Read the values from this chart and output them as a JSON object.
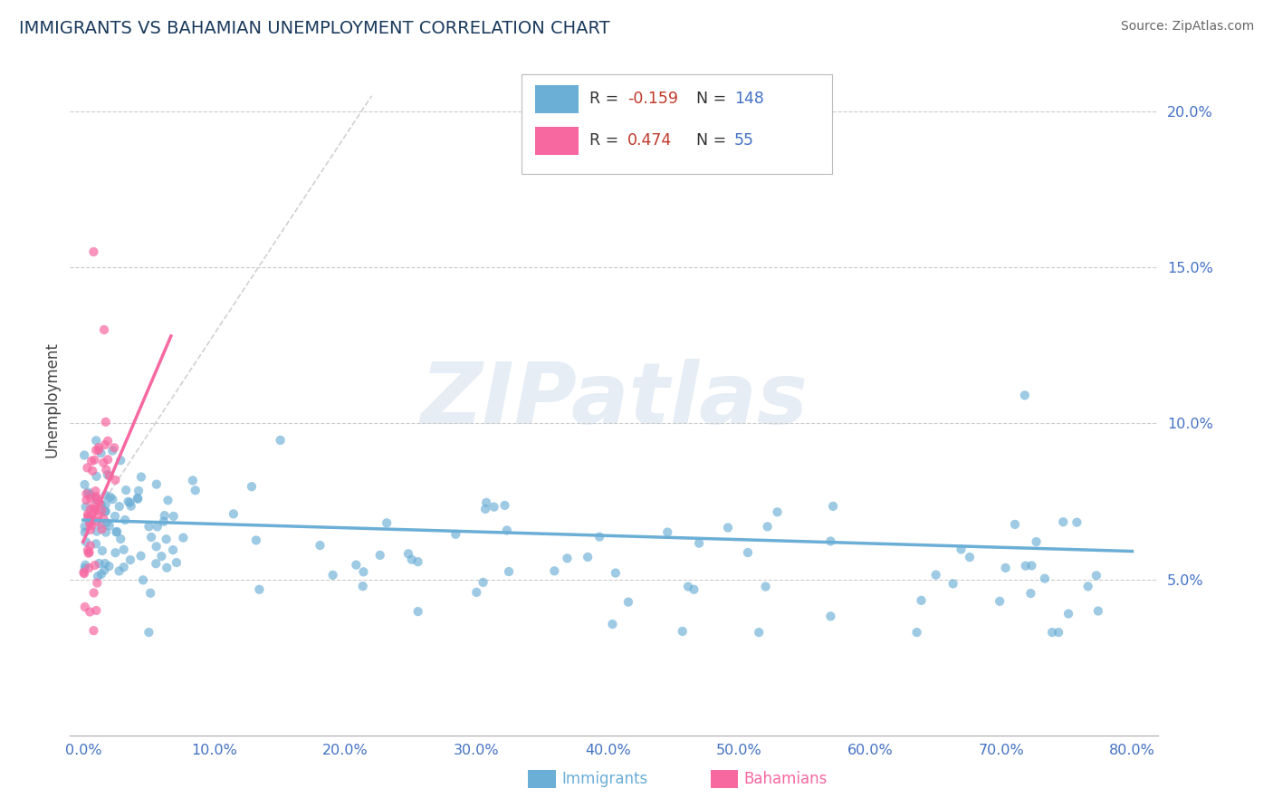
{
  "title": "IMMIGRANTS VS BAHAMIAN UNEMPLOYMENT CORRELATION CHART",
  "source_text": "Source: ZipAtlas.com",
  "ylabel": "Unemployment",
  "watermark": "ZIPatlas",
  "blue_color": "#6baed6",
  "pink_color": "#f768a1",
  "title_color": "#1a3a5c",
  "source_color": "#666666",
  "axis_label_color": "#444444",
  "tick_color": "#4472c4",
  "r1_val": "-0.159",
  "n1_val": "148",
  "r2_val": "0.474",
  "n2_val": "55",
  "r_color": "#c0392b",
  "n_color": "#4472c4",
  "xlim": [
    -0.01,
    0.82
  ],
  "ylim": [
    0.0,
    0.215
  ],
  "xticks": [
    0.0,
    0.1,
    0.2,
    0.3,
    0.4,
    0.5,
    0.6,
    0.7,
    0.8
  ],
  "yticks": [
    0.05,
    0.1,
    0.15,
    0.2
  ],
  "blue_label": "Immigrants",
  "pink_label": "Bahamians"
}
